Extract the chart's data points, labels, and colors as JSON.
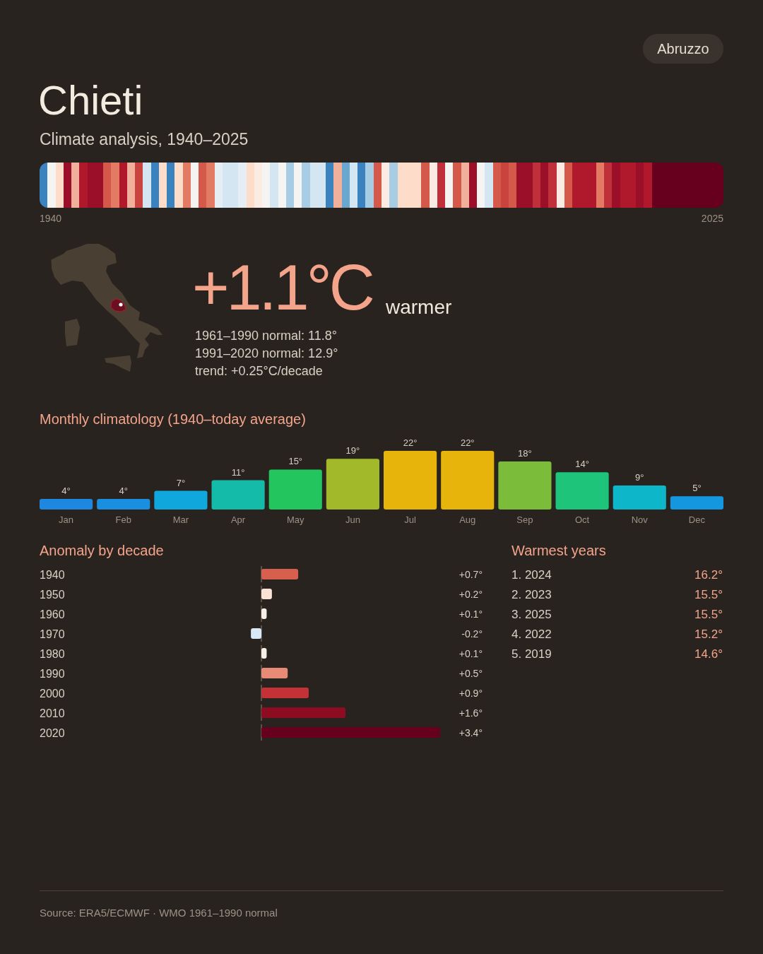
{
  "chart_data": [
    {
      "type": "other",
      "title": "Chieti",
      "subtitle": "Climate analysis, 1940–2025",
      "annotations": [
        "Abruzzo",
        "1940",
        "2025",
        "+1.1°C",
        "warmer",
        "1961–1990 normal: 11.8°",
        "1991–2020 normal: 12.9°",
        "trend: +0.25°C/decade",
        "Source: ERA5/ECMWF · WMO 1961–1990 normal"
      ]
    },
    {
      "type": "bar",
      "title": "Monthly climatology (1940–today average)",
      "categories": [
        "Jan",
        "Feb",
        "Mar",
        "Apr",
        "May",
        "Jun",
        "Jul",
        "Aug",
        "Sep",
        "Oct",
        "Nov",
        "Dec"
      ],
      "values": [
        4,
        4,
        7,
        11,
        15,
        19,
        22,
        22,
        18,
        14,
        9,
        5
      ],
      "colors": [
        "#1e88e0",
        "#1a8fe0",
        "#10a8dc",
        "#14bba8",
        "#22c55e",
        "#a2b92a",
        "#e6b40a",
        "#e6b40a",
        "#7bbd3a",
        "#1ec47a",
        "#0db7c9",
        "#1597e0"
      ],
      "value_labels": [
        "4°",
        "4°",
        "7°",
        "11°",
        "15°",
        "19°",
        "22°",
        "22°",
        "18°",
        "14°",
        "9°",
        "5°"
      ]
    },
    {
      "type": "bar",
      "orientation": "horizontal",
      "title": "Anomaly by decade",
      "categories": [
        "1940",
        "1950",
        "1960",
        "1970",
        "1980",
        "1990",
        "2000",
        "2010",
        "2020"
      ],
      "values": [
        0.7,
        0.2,
        0.1,
        -0.2,
        0.1,
        0.5,
        0.9,
        1.6,
        3.4
      ],
      "colors": [
        "#d6604d",
        "#fbe3d6",
        "#f9efe9",
        "#d9e9f5",
        "#f9efe9",
        "#e78b76",
        "#c43237",
        "#8e0c22",
        "#67001f"
      ],
      "value_labels": [
        "+0.7°",
        "+0.2°",
        "+0.1°",
        "-0.2°",
        "+0.1°",
        "+0.5°",
        "+0.9°",
        "+1.6°",
        "+3.4°"
      ],
      "ref_lines": [
        {
          "axis": "x",
          "value": 0,
          "color": "#6e6257",
          "line_style": "dashed"
        }
      ]
    },
    {
      "type": "other",
      "title": "Warmest years",
      "annotations": [
        "1. 2024",
        "16.2°",
        "2. 2023",
        "15.5°",
        "3. 2025",
        "15.5°",
        "4. 2022",
        "15.2°",
        "5. 2019",
        "14.6°"
      ]
    }
  ]
}
